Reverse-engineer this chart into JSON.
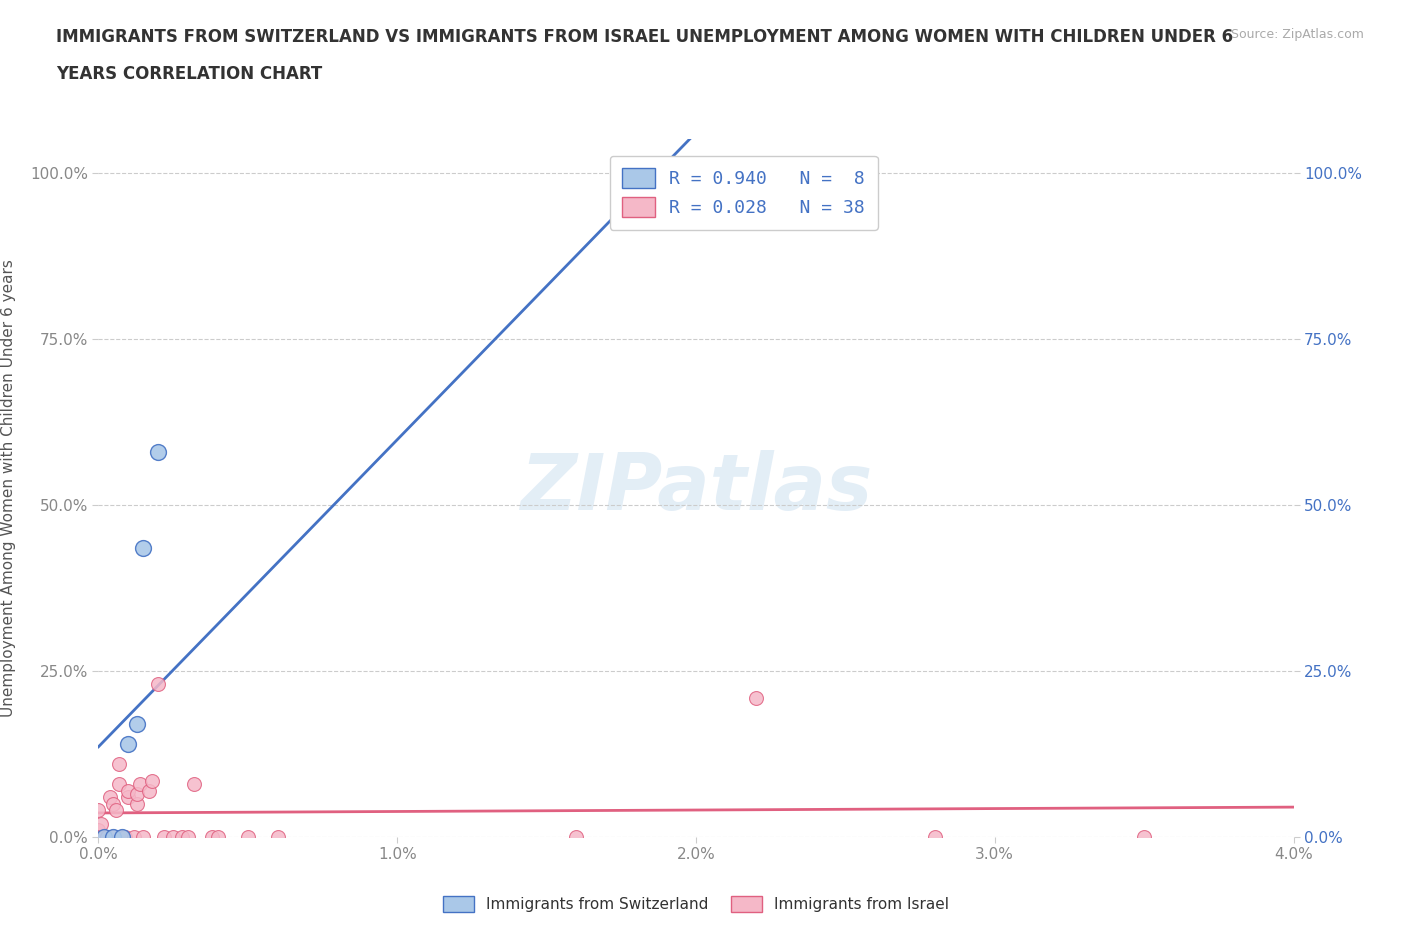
{
  "title_line1": "IMMIGRANTS FROM SWITZERLAND VS IMMIGRANTS FROM ISRAEL UNEMPLOYMENT AMONG WOMEN WITH CHILDREN UNDER 6",
  "title_line2": "YEARS CORRELATION CHART",
  "source": "Source: ZipAtlas.com",
  "ylabel": "Unemployment Among Women with Children Under 6 years",
  "xlim": [
    0.0,
    0.04
  ],
  "ylim": [
    0.0,
    1.05
  ],
  "xticks": [
    0.0,
    0.01,
    0.02,
    0.03,
    0.04
  ],
  "xtick_labels": [
    "0.0%",
    "1.0%",
    "2.0%",
    "3.0%",
    "4.0%"
  ],
  "yticks": [
    0.0,
    0.25,
    0.5,
    0.75,
    1.0
  ],
  "ytick_labels": [
    "0.0%",
    "25.0%",
    "50.0%",
    "75.0%",
    "100.0%"
  ],
  "background_color": "#ffffff",
  "grid_color": "#cccccc",
  "watermark": "ZIPatlas",
  "sw_color": "#aac8e8",
  "sw_line_color": "#4472c4",
  "sw_edge_color": "#4472c4",
  "il_color": "#f5b8c8",
  "il_line_color": "#e06080",
  "il_edge_color": "#e06080",
  "legend_r1": "R = 0.940",
  "legend_n1": "N =  8",
  "legend_r2": "R = 0.028",
  "legend_n2": "N = 38",
  "legend_label1": "Immigrants from Switzerland",
  "legend_label2": "Immigrants from Israel",
  "switzerland_points": [
    [
      0.0002,
      0.0
    ],
    [
      0.0005,
      0.0
    ],
    [
      0.0008,
      0.0
    ],
    [
      0.001,
      0.14
    ],
    [
      0.0013,
      0.17
    ],
    [
      0.0015,
      0.435
    ],
    [
      0.002,
      0.58
    ],
    [
      0.0195,
      1.0
    ]
  ],
  "israel_points": [
    [
      0.0,
      0.04
    ],
    [
      0.0,
      0.01
    ],
    [
      0.0001,
      0.0
    ],
    [
      0.0001,
      0.02
    ],
    [
      0.0002,
      0.0
    ],
    [
      0.0003,
      0.0
    ],
    [
      0.0003,
      0.0
    ],
    [
      0.0004,
      0.06
    ],
    [
      0.0005,
      0.0
    ],
    [
      0.0005,
      0.05
    ],
    [
      0.0006,
      0.04
    ],
    [
      0.0007,
      0.08
    ],
    [
      0.0007,
      0.11
    ],
    [
      0.0008,
      0.0
    ],
    [
      0.0009,
      0.0
    ],
    [
      0.001,
      0.06
    ],
    [
      0.001,
      0.07
    ],
    [
      0.0012,
      0.0
    ],
    [
      0.0013,
      0.05
    ],
    [
      0.0013,
      0.065
    ],
    [
      0.0014,
      0.08
    ],
    [
      0.0015,
      0.0
    ],
    [
      0.0017,
      0.07
    ],
    [
      0.0018,
      0.085
    ],
    [
      0.002,
      0.23
    ],
    [
      0.0022,
      0.0
    ],
    [
      0.0025,
      0.0
    ],
    [
      0.0028,
      0.0
    ],
    [
      0.003,
      0.0
    ],
    [
      0.0032,
      0.08
    ],
    [
      0.0038,
      0.0
    ],
    [
      0.004,
      0.0
    ],
    [
      0.005,
      0.0
    ],
    [
      0.006,
      0.0
    ],
    [
      0.016,
      0.0
    ],
    [
      0.022,
      0.21
    ],
    [
      0.028,
      0.0
    ],
    [
      0.035,
      0.0
    ]
  ]
}
